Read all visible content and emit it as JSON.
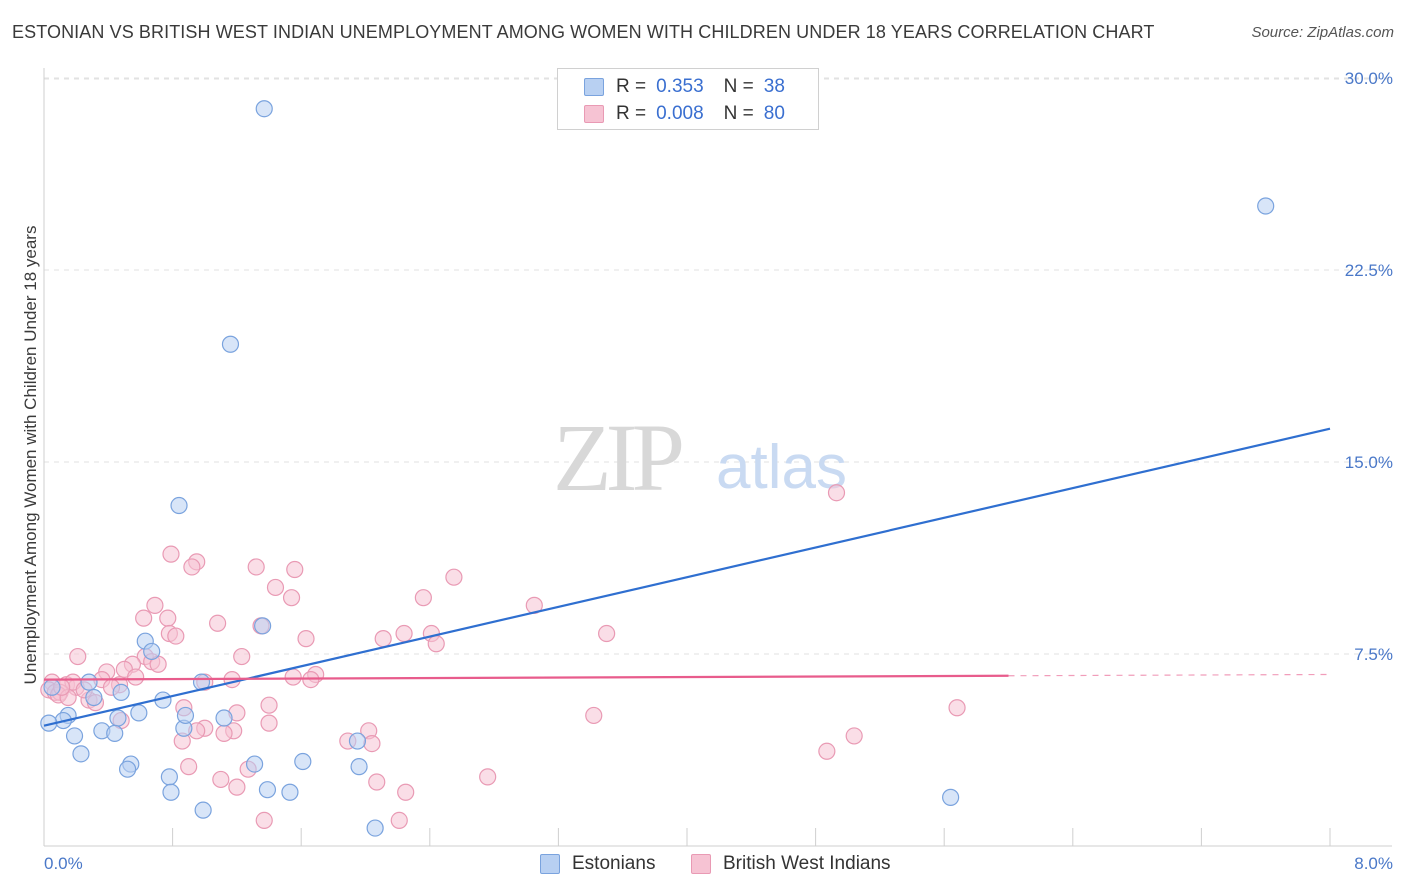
{
  "header": {
    "title": "ESTONIAN VS BRITISH WEST INDIAN UNEMPLOYMENT AMONG WOMEN WITH CHILDREN UNDER 18 YEARS CORRELATION CHART",
    "source": "Source: ZipAtlas.com"
  },
  "watermark": {
    "zip": "ZIP",
    "atlas": "atlas"
  },
  "legend": {
    "rows": [
      {
        "r_label": "R =",
        "r_value": "0.353",
        "n_label": "N =",
        "n_value": "38"
      },
      {
        "r_label": "R =",
        "r_value": "0.008",
        "n_label": "N =",
        "n_value": "80"
      }
    ]
  },
  "bottom_legend": {
    "estonians": "Estonians",
    "bwi": "British West Indians"
  },
  "colors": {
    "estonians_fill": "#b8d0f2",
    "estonians_stroke": "#7aa3de",
    "estonians_line": "#2f6fd0",
    "bwi_fill": "#f6c3d3",
    "bwi_stroke": "#e99ab4",
    "bwi_line": "#e85c8c",
    "tick": "#4a78c8",
    "grid": "#e2e2e2"
  },
  "chart_data": {
    "type": "scatter",
    "title": "ESTONIAN VS BRITISH WEST INDIAN UNEMPLOYMENT AMONG WOMEN WITH CHILDREN UNDER 18 YEARS CORRELATION CHART",
    "xlabel": "",
    "ylabel": "Unemployment Among Women with Children Under 18 years",
    "xlim": [
      0,
      8
    ],
    "ylim": [
      0,
      31
    ],
    "x_tick_labels": [
      "0.0%",
      "8.0%"
    ],
    "y_ticks": [
      7.5,
      15.0,
      22.5,
      30.0
    ],
    "y_tick_labels": [
      "7.5%",
      "15.0%",
      "22.5%",
      "30.0%"
    ],
    "series": [
      {
        "name": "Estonians",
        "R": 0.353,
        "N": 38,
        "trend": {
          "x": [
            0.0,
            8.0
          ],
          "y": [
            4.7,
            16.3
          ]
        },
        "points": [
          [
            1.37,
            28.8
          ],
          [
            7.6,
            25.0
          ],
          [
            1.16,
            19.6
          ],
          [
            0.84,
            13.3
          ],
          [
            1.36,
            8.6
          ],
          [
            0.63,
            8.0
          ],
          [
            0.67,
            7.6
          ],
          [
            0.98,
            6.4
          ],
          [
            0.28,
            6.4
          ],
          [
            0.05,
            6.2
          ],
          [
            0.48,
            6.0
          ],
          [
            0.31,
            5.8
          ],
          [
            0.74,
            5.7
          ],
          [
            0.15,
            5.1
          ],
          [
            0.12,
            4.9
          ],
          [
            0.59,
            5.2
          ],
          [
            0.46,
            5.0
          ],
          [
            0.03,
            4.8
          ],
          [
            0.87,
            4.6
          ],
          [
            0.36,
            4.5
          ],
          [
            0.44,
            4.4
          ],
          [
            0.88,
            5.1
          ],
          [
            0.19,
            4.3
          ],
          [
            1.12,
            5.0
          ],
          [
            0.23,
            3.6
          ],
          [
            0.54,
            3.2
          ],
          [
            0.52,
            3.0
          ],
          [
            0.78,
            2.7
          ],
          [
            1.31,
            3.2
          ],
          [
            1.61,
            3.3
          ],
          [
            1.95,
            4.1
          ],
          [
            1.96,
            3.1
          ],
          [
            0.79,
            2.1
          ],
          [
            1.39,
            2.2
          ],
          [
            1.53,
            2.1
          ],
          [
            0.99,
            1.4
          ],
          [
            2.06,
            0.7
          ],
          [
            5.64,
            1.9
          ]
        ]
      },
      {
        "name": "British West Indians",
        "R": 0.008,
        "N": 80,
        "trend": {
          "x": [
            0.0,
            6.0
          ],
          "y": [
            6.5,
            6.65
          ]
        },
        "trend_dashed": {
          "x": [
            6.0,
            8.0
          ],
          "y": [
            6.65,
            6.7
          ]
        },
        "points": [
          [
            4.93,
            13.8
          ],
          [
            0.79,
            11.4
          ],
          [
            0.95,
            11.1
          ],
          [
            0.92,
            10.9
          ],
          [
            1.32,
            10.9
          ],
          [
            1.56,
            10.8
          ],
          [
            2.55,
            10.5
          ],
          [
            1.44,
            10.1
          ],
          [
            1.54,
            9.7
          ],
          [
            2.36,
            9.7
          ],
          [
            0.69,
            9.4
          ],
          [
            3.05,
            9.4
          ],
          [
            0.62,
            8.9
          ],
          [
            0.77,
            8.9
          ],
          [
            1.08,
            8.7
          ],
          [
            1.35,
            8.6
          ],
          [
            0.78,
            8.3
          ],
          [
            0.82,
            8.2
          ],
          [
            2.24,
            8.3
          ],
          [
            2.41,
            8.3
          ],
          [
            3.5,
            8.3
          ],
          [
            1.63,
            8.1
          ],
          [
            2.11,
            8.1
          ],
          [
            2.44,
            7.9
          ],
          [
            0.21,
            7.4
          ],
          [
            0.63,
            7.4
          ],
          [
            1.23,
            7.4
          ],
          [
            0.67,
            7.2
          ],
          [
            0.55,
            7.1
          ],
          [
            0.71,
            7.1
          ],
          [
            0.5,
            6.9
          ],
          [
            0.39,
            6.8
          ],
          [
            0.36,
            6.5
          ],
          [
            0.57,
            6.6
          ],
          [
            1.17,
            6.5
          ],
          [
            1.69,
            6.7
          ],
          [
            1.66,
            6.5
          ],
          [
            0.05,
            6.4
          ],
          [
            0.14,
            6.3
          ],
          [
            0.2,
            6.2
          ],
          [
            0.47,
            6.3
          ],
          [
            0.42,
            6.2
          ],
          [
            0.03,
            6.1
          ],
          [
            0.07,
            6.0
          ],
          [
            0.1,
            6.0
          ],
          [
            0.09,
            5.9
          ],
          [
            0.15,
            5.8
          ],
          [
            0.28,
            5.7
          ],
          [
            0.32,
            5.6
          ],
          [
            1.0,
            6.4
          ],
          [
            0.87,
            5.4
          ],
          [
            1.4,
            5.5
          ],
          [
            3.42,
            5.1
          ],
          [
            5.68,
            5.4
          ],
          [
            1.2,
            5.2
          ],
          [
            0.48,
            4.9
          ],
          [
            1.4,
            4.8
          ],
          [
            1.0,
            4.6
          ],
          [
            1.18,
            4.5
          ],
          [
            2.02,
            4.5
          ],
          [
            0.86,
            4.1
          ],
          [
            1.12,
            4.4
          ],
          [
            1.89,
            4.1
          ],
          [
            5.04,
            4.3
          ],
          [
            2.04,
            4.0
          ],
          [
            4.87,
            3.7
          ],
          [
            0.9,
            3.1
          ],
          [
            1.27,
            3.0
          ],
          [
            2.76,
            2.7
          ],
          [
            1.1,
            2.6
          ],
          [
            1.2,
            2.3
          ],
          [
            2.07,
            2.5
          ],
          [
            2.25,
            2.1
          ],
          [
            1.37,
            1.0
          ],
          [
            2.21,
            1.0
          ],
          [
            0.95,
            4.5
          ],
          [
            1.55,
            6.6
          ],
          [
            0.18,
            6.4
          ],
          [
            0.25,
            6.1
          ],
          [
            0.11,
            6.2
          ]
        ]
      }
    ],
    "legend": "top-center"
  }
}
